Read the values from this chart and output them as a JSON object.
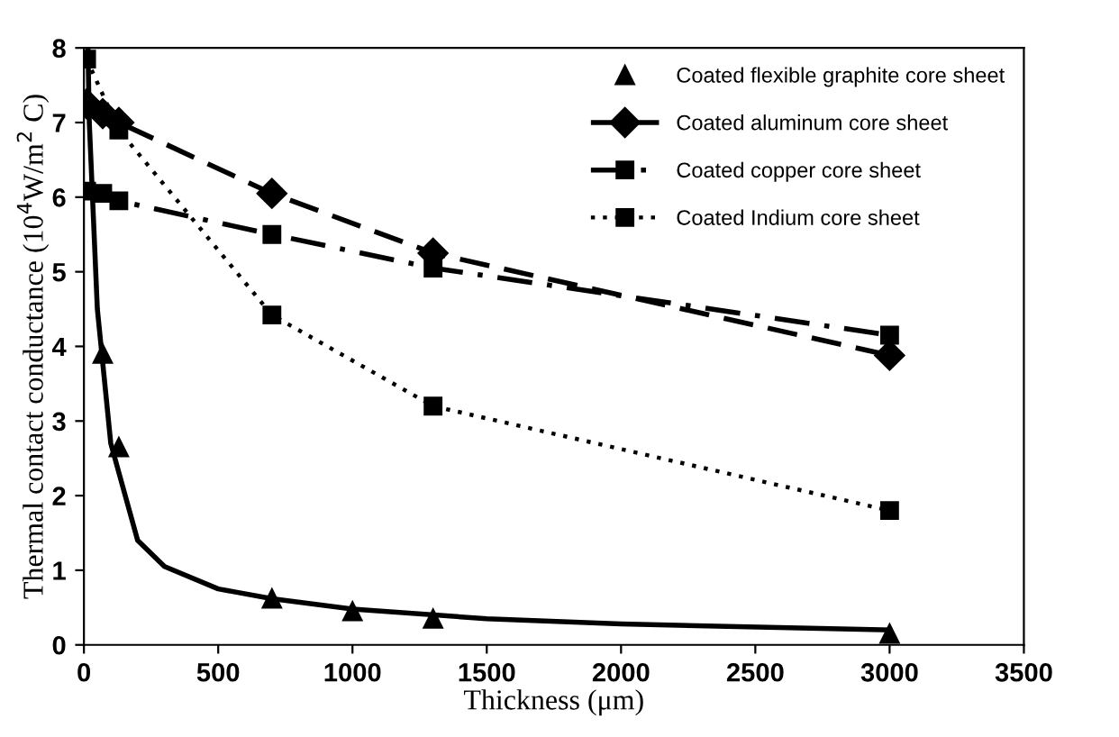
{
  "chart_data": {
    "type": "line",
    "xlabel": "Thickness (μm)",
    "ylabel": "Thermal contact conductance (10$^{4}$W/m$^{2}$ C)",
    "xlim": [
      0,
      3500
    ],
    "ylim": [
      0,
      8
    ],
    "xticks": [
      0,
      500,
      1000,
      1500,
      2000,
      2500,
      3000,
      3500
    ],
    "yticks": [
      0,
      1,
      2,
      3,
      4,
      5,
      6,
      7,
      8
    ],
    "grid": false,
    "legend": "top right",
    "series": [
      {
        "name": "Coated flexible graphite core sheet",
        "type": "scatter",
        "color": "#000000",
        "marker": "triangle",
        "x": [
          70,
          130,
          700,
          1000,
          1300,
          3000
        ],
        "values": [
          3.9,
          2.65,
          0.62,
          0.45,
          0.35,
          0.15
        ]
      },
      {
        "name": "Coated aluminum core sheet",
        "color": "#000000",
        "marker": "diamond",
        "line_style": "dashed",
        "x": [
          10,
          70,
          130,
          700,
          1300,
          3000
        ],
        "values": [
          7.25,
          7.12,
          7.0,
          6.05,
          5.25,
          3.88
        ]
      },
      {
        "name": "Coated copper core sheet",
        "color": "#000000",
        "marker": "square",
        "line_style": "dashdot",
        "x": [
          10,
          70,
          130,
          700,
          1300,
          3000
        ],
        "values": [
          6.08,
          6.05,
          5.95,
          5.5,
          5.05,
          4.15
        ]
      },
      {
        "name": "Coated Indium core sheet",
        "color": "#000000",
        "marker": "square",
        "line_style": "dotted",
        "x": [
          10,
          130,
          700,
          1300,
          3000
        ],
        "values": [
          7.85,
          6.9,
          4.42,
          3.2,
          1.8
        ]
      },
      {
        "color": "#000000",
        "marker": "none",
        "line_style": "solid",
        "x": [
          15,
          20,
          50,
          100,
          200,
          300,
          500,
          700,
          1000,
          1500,
          2000,
          3000
        ],
        "values": [
          8.0,
          7.0,
          4.5,
          2.7,
          1.4,
          1.05,
          0.75,
          0.62,
          0.48,
          0.35,
          0.28,
          0.2
        ]
      }
    ]
  }
}
